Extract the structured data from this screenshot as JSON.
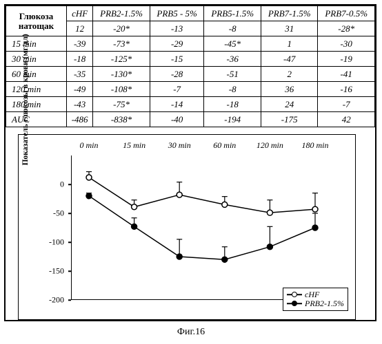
{
  "table": {
    "header_first": "Глюкоза натощак",
    "columns": [
      "cHF",
      "PRB2-1.5%",
      "PRB5 - 5%",
      "PRB5-1.5%",
      "PRB7-1.5%",
      "PRB7-0.5%"
    ],
    "rows": [
      {
        "label": "",
        "cells": [
          "12",
          "-20*",
          "-13",
          "-8",
          "31",
          "-28*"
        ]
      },
      {
        "label": "15 min",
        "cells": [
          "-39",
          "-73*",
          "-29",
          "-45*",
          "1",
          "-30"
        ]
      },
      {
        "label": "30 min",
        "cells": [
          "-18",
          "-125*",
          "-15",
          "-36",
          "-47",
          "-19"
        ]
      },
      {
        "label": "60 min",
        "cells": [
          "-35",
          "-130*",
          "-28",
          "-51",
          "2",
          "-41"
        ]
      },
      {
        "label": "120 min",
        "cells": [
          "-49",
          "-108*",
          "-7",
          "-8",
          "36",
          "-16"
        ]
      },
      {
        "label": "180 min",
        "cells": [
          "-43",
          "-75*",
          "-14",
          "-18",
          "24",
          "-7"
        ]
      },
      {
        "label": "AUC",
        "cells": [
          "-486",
          "-838*",
          "-40",
          "-194",
          "-175",
          "42"
        ]
      }
    ]
  },
  "chart": {
    "type": "line",
    "ylabel": "Показатель глюкозы в крови (мг/дл)",
    "x_labels": [
      "0 min",
      "15 min",
      "30 min",
      "60 min",
      "120 min",
      "180 min"
    ],
    "ylim": [
      -200,
      50
    ],
    "yticks": [
      0,
      -50,
      -100,
      -150,
      -200
    ],
    "series": [
      {
        "name": "cHF",
        "marker": "open-circle",
        "color": "#000000",
        "fill": "#ffffff",
        "values": [
          12,
          -39,
          -18,
          -35,
          -49,
          -43
        ],
        "err": [
          10,
          12,
          22,
          14,
          22,
          28
        ]
      },
      {
        "name": "PRB2-1.5%",
        "marker": "filled-circle",
        "color": "#000000",
        "fill": "#000000",
        "values": [
          -20,
          -73,
          -125,
          -130,
          -108,
          -75
        ],
        "err": [
          5,
          15,
          30,
          22,
          35,
          25
        ]
      }
    ],
    "background_color": "#ffffff",
    "axis_color": "#000000",
    "line_width": 1.5,
    "marker_size": 8
  },
  "caption": "Фиг.16",
  "legend": {
    "items": [
      "cHF",
      "PRB2-1.5%"
    ]
  }
}
